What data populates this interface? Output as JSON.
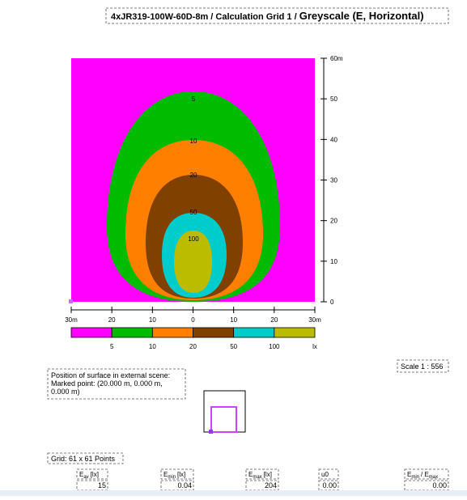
{
  "header": {
    "title": "4xJR319-100W-60D-8m / Calculation Grid 1 / ",
    "subtitle": "Greyscale (E, Horizontal)"
  },
  "plot": {
    "contour_labels": [
      "5",
      "10",
      "20",
      "50",
      "100"
    ],
    "y_axis_labels": [
      "60m",
      "50",
      "40",
      "30",
      "20",
      "10",
      "0"
    ],
    "x_axis_labels": [
      "30m",
      "20",
      "10",
      "0",
      "10",
      "20",
      "30m"
    ]
  },
  "legend": {
    "labels": [
      "5",
      "10",
      "20",
      "50",
      "100",
      "lx"
    ]
  },
  "scale": "Scale 1 : 556",
  "position": {
    "lines": [
      "Position of surface in external scene:",
      "Marked point: (20.000 m, 0.000 m,",
      "0.000 m)"
    ]
  },
  "grid": "Grid: 61 x 61 Points",
  "table": {
    "columns": [
      {
        "header": [
          "E",
          "av",
          "[lx]"
        ],
        "value": "15"
      },
      {
        "header": [
          "E",
          "min",
          "[lx]"
        ],
        "value": "0.04"
      },
      {
        "header": [
          "E",
          "max",
          "[lx]"
        ],
        "value": "204"
      },
      {
        "header": [
          "u0"
        ],
        "value": "0.00"
      },
      {
        "header": [
          "E",
          "min",
          "/ E",
          "max"
        ],
        "value": "0.00"
      }
    ]
  }
}
